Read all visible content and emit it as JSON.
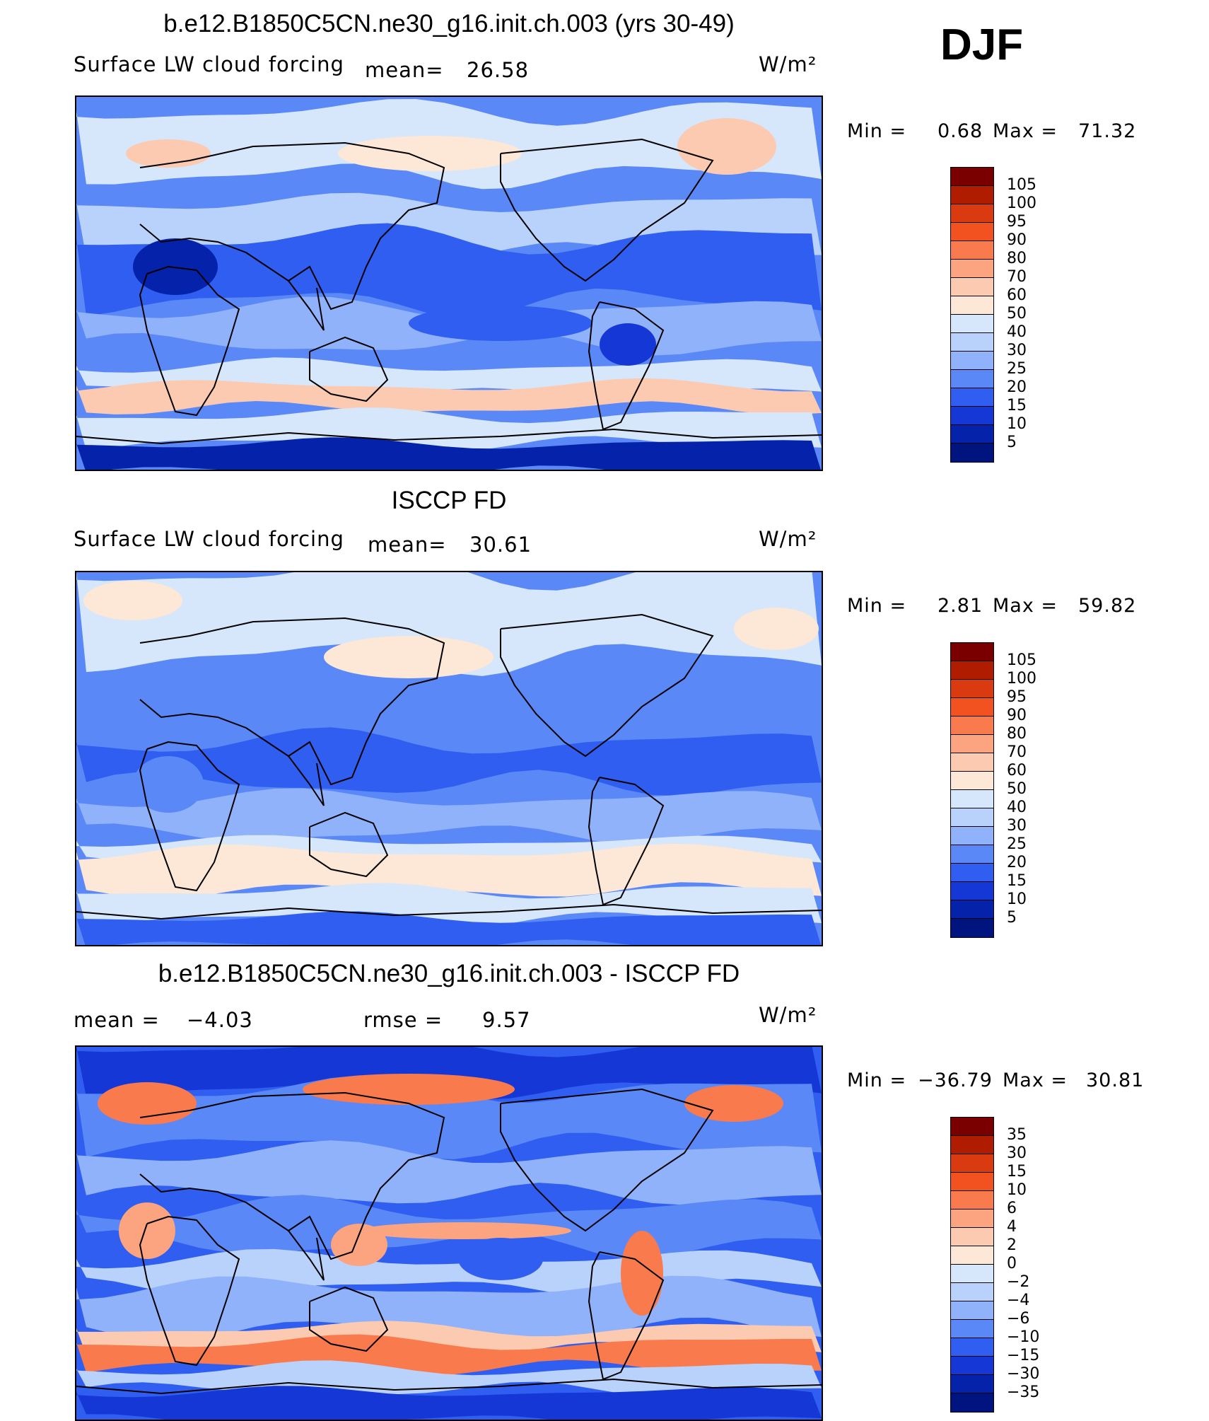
{
  "season": "DJF",
  "panels": [
    {
      "title": "b.e12.B1850C5CN.ne30_g16.init.ch.003 (yrs 30-49)",
      "left_text": "Surface LW cloud forcing",
      "stat1_label": "mean=",
      "stat1_value": "26.58",
      "units": "W/m²",
      "min_label": "Min =",
      "min_value": "0.68",
      "max_label": "Max =",
      "max_value": "71.32",
      "legend": [
        "105",
        "100",
        "95",
        "90",
        "80",
        "70",
        "60",
        "50",
        "40",
        "30",
        "25",
        "20",
        "15",
        "10",
        "5"
      ],
      "colors": [
        "#7a0000",
        "#b01c00",
        "#d93a10",
        "#f2521f",
        "#f97a4c",
        "#fba47f",
        "#fccab0",
        "#fde7d6",
        "#d6e6fb",
        "#b9d2fb",
        "#90b2fb",
        "#5b88f7",
        "#2f5ef0",
        "#1437d6",
        "#0523aa",
        "#001480"
      ],
      "mapstyle": "a"
    },
    {
      "title": "ISCCP FD",
      "left_text": "Surface LW cloud forcing",
      "stat1_label": "mean=",
      "stat1_value": "30.61",
      "units": "W/m²",
      "min_label": "Min =",
      "min_value": "2.81",
      "max_label": "Max =",
      "max_value": "59.82",
      "legend": [
        "105",
        "100",
        "95",
        "90",
        "80",
        "70",
        "60",
        "50",
        "40",
        "30",
        "25",
        "20",
        "15",
        "10",
        "5"
      ],
      "colors": [
        "#7a0000",
        "#b01c00",
        "#d93a10",
        "#f2521f",
        "#f97a4c",
        "#fba47f",
        "#fccab0",
        "#fde7d6",
        "#d6e6fb",
        "#b9d2fb",
        "#90b2fb",
        "#5b88f7",
        "#2f5ef0",
        "#1437d6",
        "#0523aa",
        "#001480"
      ],
      "mapstyle": "b"
    },
    {
      "title": "b.e12.B1850C5CN.ne30_g16.init.ch.003 - ISCCP FD",
      "left_text": "mean =",
      "left_value": "−4.03",
      "stat1_label": "rmse =",
      "stat1_value": "9.57",
      "units": "W/m²",
      "min_label": "Min =",
      "min_value": "−36.79",
      "max_label": "Max =",
      "max_value": "30.81",
      "legend": [
        "35",
        "30",
        "15",
        "10",
        "6",
        "4",
        "2",
        "0",
        "−2",
        "−4",
        "−6",
        "−10",
        "−15",
        "−30",
        "−35"
      ],
      "colors": [
        "#7a0000",
        "#b01c00",
        "#d93a10",
        "#f2521f",
        "#f97a4c",
        "#fba47f",
        "#fccab0",
        "#fde7d6",
        "#d6e6fb",
        "#b9d2fb",
        "#90b2fb",
        "#5b88f7",
        "#2f5ef0",
        "#1437d6",
        "#0523aa",
        "#001480"
      ],
      "mapstyle": "c"
    }
  ]
}
